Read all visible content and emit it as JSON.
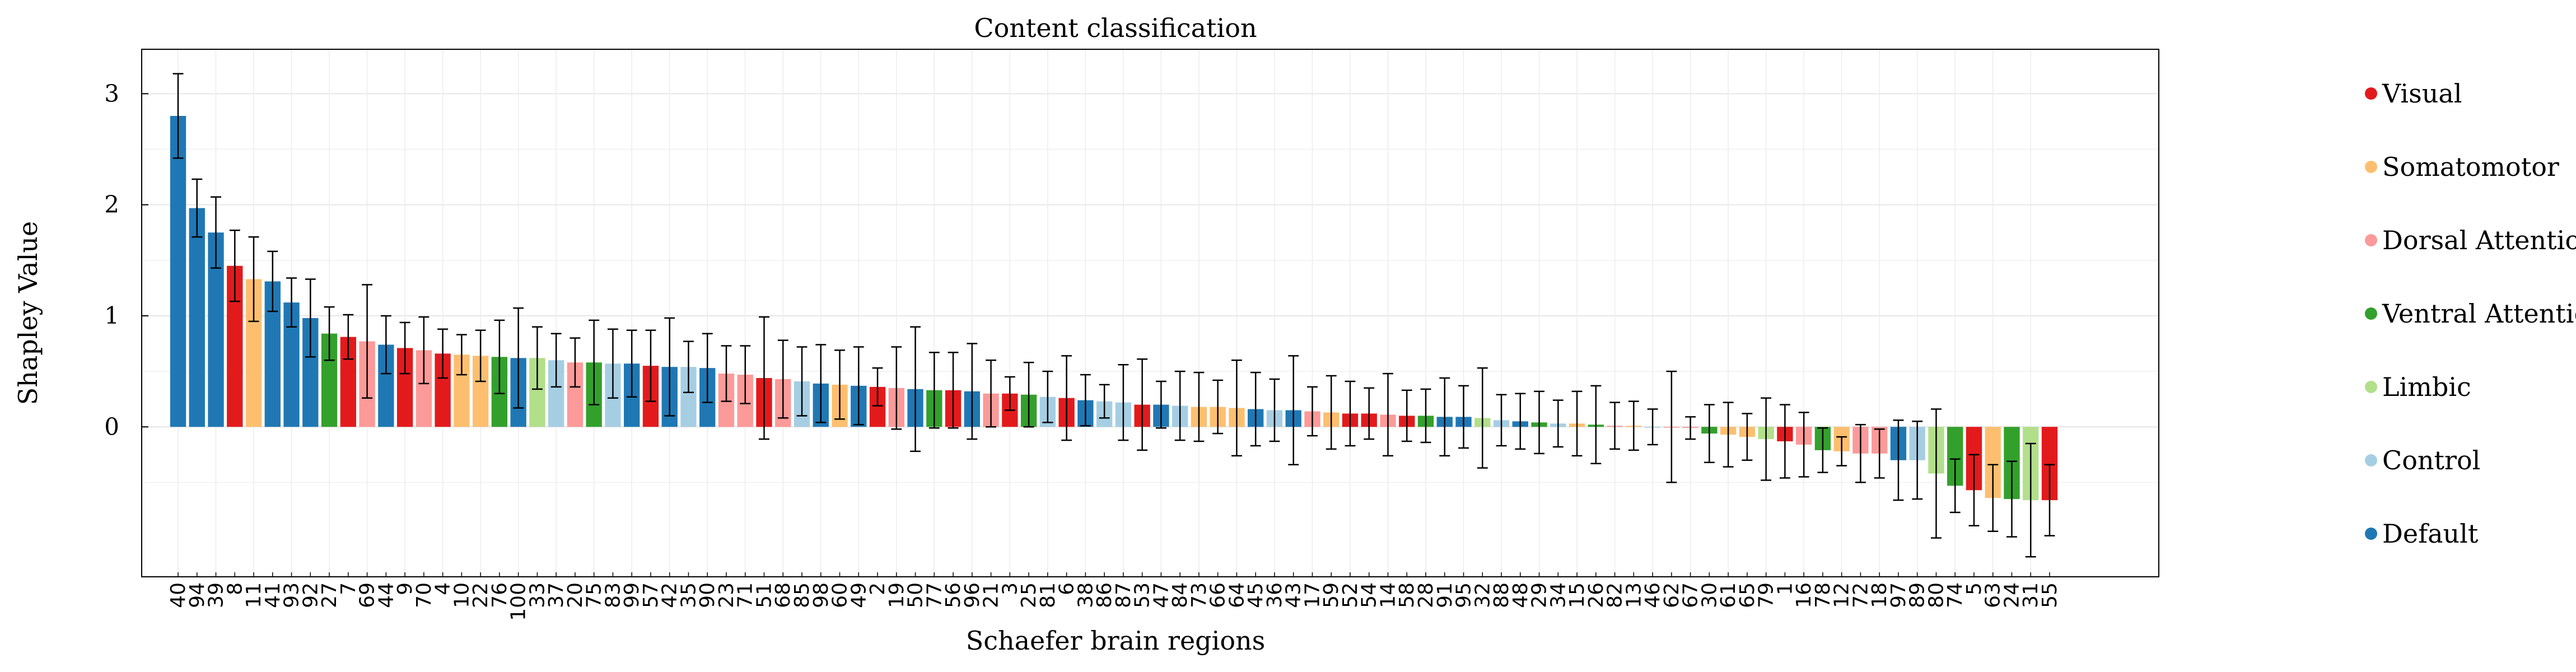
{
  "chart_data": {
    "type": "bar",
    "title": "Content classification",
    "xlabel": "Schaefer brain regions",
    "ylabel": "Shapley Value",
    "ylim": [
      -1.35,
      3.4
    ],
    "yticks": [
      0,
      1,
      2,
      3
    ],
    "grid": true,
    "legend_placement": "right",
    "error_bars": true,
    "legend": [
      {
        "name": "Visual",
        "color": "#e31a1c"
      },
      {
        "name": "Somatomotor",
        "color": "#fdbf6f"
      },
      {
        "name": "Dorsal Attention",
        "color": "#fb9a99"
      },
      {
        "name": "Ventral Attention",
        "color": "#33a02c"
      },
      {
        "name": "Limbic",
        "color": "#b2df8a"
      },
      {
        "name": "Control",
        "color": "#a6cee3"
      },
      {
        "name": "Default",
        "color": "#1f78b4"
      }
    ],
    "categories": [
      "40",
      "94",
      "39",
      "8",
      "11",
      "41",
      "93",
      "92",
      "27",
      "7",
      "69",
      "44",
      "9",
      "70",
      "4",
      "10",
      "22",
      "76",
      "100",
      "33",
      "37",
      "20",
      "75",
      "83",
      "99",
      "57",
      "42",
      "35",
      "90",
      "23",
      "71",
      "51",
      "68",
      "85",
      "98",
      "60",
      "49",
      "2",
      "19",
      "50",
      "77",
      "56",
      "96",
      "21",
      "3",
      "25",
      "81",
      "6",
      "38",
      "86",
      "87",
      "53",
      "47",
      "84",
      "73",
      "66",
      "64",
      "45",
      "36",
      "43",
      "17",
      "59",
      "52",
      "54",
      "14",
      "58",
      "28",
      "91",
      "95",
      "32",
      "88",
      "48",
      "29",
      "34",
      "15",
      "26",
      "82",
      "13",
      "46",
      "62",
      "67",
      "30",
      "61",
      "65",
      "79",
      "1",
      "16",
      "78",
      "12",
      "72",
      "18",
      "97",
      "89",
      "80",
      "74",
      "5",
      "63",
      "24",
      "31",
      "55"
    ],
    "networks": [
      "Default",
      "Default",
      "Default",
      "Visual",
      "Somatomotor",
      "Default",
      "Default",
      "Default",
      "Ventral Attention",
      "Visual",
      "Dorsal Attention",
      "Default",
      "Visual",
      "Dorsal Attention",
      "Visual",
      "Somatomotor",
      "Somatomotor",
      "Ventral Attention",
      "Default",
      "Limbic",
      "Control",
      "Dorsal Attention",
      "Ventral Attention",
      "Control",
      "Default",
      "Visual",
      "Default",
      "Control",
      "Default",
      "Dorsal Attention",
      "Dorsal Attention",
      "Visual",
      "Dorsal Attention",
      "Control",
      "Default",
      "Somatomotor",
      "Default",
      "Visual",
      "Dorsal Attention",
      "Default",
      "Ventral Attention",
      "Visual",
      "Default",
      "Dorsal Attention",
      "Visual",
      "Ventral Attention",
      "Control",
      "Visual",
      "Default",
      "Control",
      "Control",
      "Visual",
      "Default",
      "Control",
      "Somatomotor",
      "Somatomotor",
      "Somatomotor",
      "Default",
      "Control",
      "Default",
      "Dorsal Attention",
      "Somatomotor",
      "Visual",
      "Visual",
      "Dorsal Attention",
      "Visual",
      "Ventral Attention",
      "Default",
      "Default",
      "Limbic",
      "Control",
      "Default",
      "Ventral Attention",
      "Control",
      "Somatomotor",
      "Ventral Attention",
      "Dorsal Attention",
      "Somatomotor",
      "Control",
      "Dorsal Attention",
      "Dorsal Attention",
      "Ventral Attention",
      "Somatomotor",
      "Somatomotor",
      "Limbic",
      "Visual",
      "Dorsal Attention",
      "Ventral Attention",
      "Somatomotor",
      "Dorsal Attention",
      "Dorsal Attention",
      "Default",
      "Control",
      "Limbic",
      "Ventral Attention",
      "Visual",
      "Somatomotor",
      "Ventral Attention",
      "Limbic",
      "Visual"
    ],
    "values": [
      2.8,
      1.97,
      1.75,
      1.45,
      1.33,
      1.31,
      1.12,
      0.98,
      0.84,
      0.81,
      0.77,
      0.74,
      0.71,
      0.69,
      0.66,
      0.65,
      0.64,
      0.63,
      0.62,
      0.62,
      0.6,
      0.58,
      0.58,
      0.57,
      0.57,
      0.55,
      0.54,
      0.54,
      0.53,
      0.48,
      0.47,
      0.44,
      0.43,
      0.41,
      0.39,
      0.38,
      0.37,
      0.36,
      0.35,
      0.34,
      0.33,
      0.33,
      0.32,
      0.3,
      0.3,
      0.29,
      0.27,
      0.26,
      0.24,
      0.23,
      0.22,
      0.2,
      0.2,
      0.19,
      0.18,
      0.18,
      0.17,
      0.16,
      0.15,
      0.15,
      0.14,
      0.13,
      0.12,
      0.12,
      0.11,
      0.1,
      0.1,
      0.09,
      0.09,
      0.08,
      0.06,
      0.05,
      0.04,
      0.03,
      0.03,
      0.02,
      0.01,
      0.01,
      0.0,
      0.0,
      -0.01,
      -0.06,
      -0.07,
      -0.09,
      -0.11,
      -0.13,
      -0.16,
      -0.21,
      -0.22,
      -0.24,
      -0.24,
      -0.3,
      -0.3,
      -0.42,
      -0.53,
      -0.57,
      -0.64,
      -0.65,
      -0.66,
      -0.66
    ],
    "errors": [
      0.38,
      0.26,
      0.32,
      0.32,
      0.38,
      0.27,
      0.22,
      0.35,
      0.24,
      0.2,
      0.51,
      0.26,
      0.23,
      0.3,
      0.22,
      0.18,
      0.23,
      0.33,
      0.45,
      0.28,
      0.24,
      0.22,
      0.38,
      0.31,
      0.3,
      0.32,
      0.44,
      0.23,
      0.31,
      0.25,
      0.26,
      0.55,
      0.35,
      0.31,
      0.35,
      0.31,
      0.35,
      0.17,
      0.37,
      0.56,
      0.34,
      0.34,
      0.43,
      0.3,
      0.15,
      0.29,
      0.23,
      0.38,
      0.23,
      0.15,
      0.34,
      0.41,
      0.21,
      0.31,
      0.31,
      0.24,
      0.43,
      0.33,
      0.28,
      0.49,
      0.22,
      0.33,
      0.29,
      0.23,
      0.37,
      0.23,
      0.24,
      0.35,
      0.28,
      0.45,
      0.23,
      0.25,
      0.28,
      0.21,
      0.29,
      0.35,
      0.21,
      0.22,
      0.16,
      0.5,
      0.1,
      0.26,
      0.29,
      0.21,
      0.37,
      0.33,
      0.29,
      0.2,
      0.13,
      0.26,
      0.22,
      0.36,
      0.35,
      0.58,
      0.24,
      0.32,
      0.3,
      0.34,
      0.51,
      0.32
    ]
  }
}
